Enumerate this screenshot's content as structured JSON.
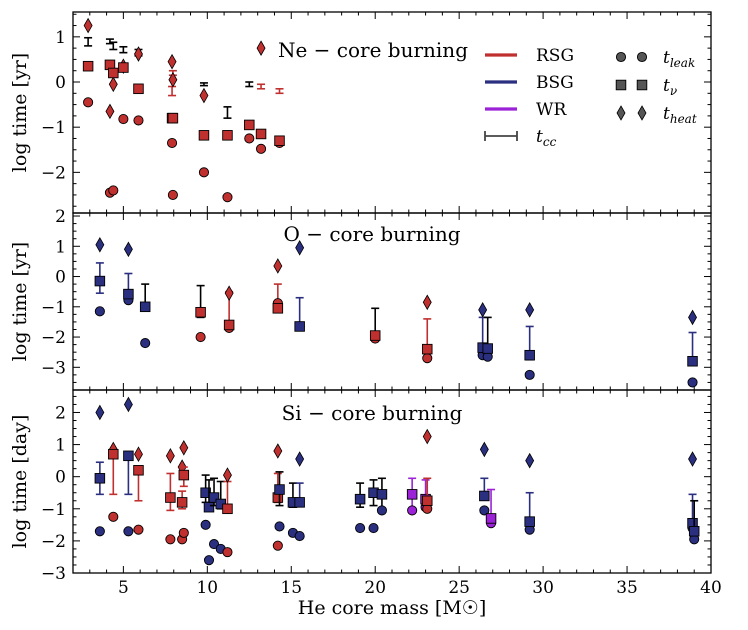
{
  "chart_data": {
    "type": "scatter",
    "xlabel": "He core mass [M☉]",
    "xlim": [
      2,
      40
    ],
    "xticks": [
      5,
      10,
      15,
      20,
      25,
      30,
      35,
      40
    ],
    "colors": {
      "RSG": "#c0302f",
      "BSG": "#2a2f80",
      "WR": "#9b22d6",
      "tcc": "#000000",
      "axis": "#000000"
    },
    "legend": {
      "placement": "top-right",
      "lines": [
        {
          "key": "RSG",
          "label": "RSG"
        },
        {
          "key": "BSG",
          "label": "BSG"
        },
        {
          "key": "WR",
          "label": "WR"
        },
        {
          "key": "tcc",
          "label": "t_cc"
        }
      ],
      "markers": [
        {
          "marker": "circle",
          "label": "t_leak"
        },
        {
          "marker": "square",
          "label": "t_ν"
        },
        {
          "marker": "diamond",
          "label": "t_heat"
        }
      ]
    },
    "panels": [
      {
        "title": "Ne − core burning",
        "ylabel": "log time [yr]",
        "ylim": [
          -2.9,
          1.55
        ],
        "yticks": [
          -2,
          -1,
          0,
          1
        ],
        "minor_step": 0.25,
        "points": [
          {
            "x": 2.9,
            "c": "RSG",
            "leak": -0.45,
            "nu": 0.35,
            "heat": 1.25,
            "cc": 0.9,
            "lo": 0.8,
            "hi": 0.98,
            "tcc_color": "black"
          },
          {
            "x": 4.2,
            "c": "RSG",
            "leak": -2.45,
            "nu": 0.38,
            "heat": -0.65,
            "cc": 0.9,
            "lo": 0.85,
            "hi": 0.95,
            "tcc_color": "black"
          },
          {
            "x": 4.4,
            "c": "RSG",
            "leak": -2.4,
            "nu": 0.2,
            "heat": -0.05,
            "cc": 0.8,
            "lo": 0.72,
            "hi": 0.88,
            "tcc_color": "black"
          },
          {
            "x": 5.0,
            "c": "RSG",
            "leak": -0.82,
            "nu": 0.32,
            "heat": 0.35,
            "cc": 0.72,
            "lo": 0.65,
            "hi": 0.78,
            "tcc_color": "black"
          },
          {
            "x": 5.9,
            "c": "RSG",
            "leak": -0.85,
            "nu": -0.15,
            "heat": 0.62,
            "cc": 0.65,
            "lo": 0.58,
            "hi": 0.72,
            "tcc_color": "black"
          },
          {
            "x": 7.9,
            "c": "RSG",
            "leak": -1.35,
            "nu": -0.8,
            "heat": 0.45,
            "cc": -0.25,
            "lo": -0.3,
            "hi": -0.1,
            "tcc_color": "red"
          },
          {
            "x": 7.95,
            "c": "RSG",
            "leak": -2.5,
            "nu": -0.8,
            "heat": 0.05,
            "cc": 0.2,
            "lo": 0.15,
            "hi": 0.25,
            "tcc_color": "red"
          },
          {
            "x": 9.8,
            "c": "RSG",
            "leak": -2.0,
            "nu": -1.18,
            "heat": -0.3,
            "cc": -0.05,
            "lo": -0.08,
            "hi": -0.02,
            "tcc_color": "black"
          },
          {
            "x": 11.2,
            "c": "RSG",
            "leak": -2.55,
            "nu": -1.18,
            "heat": null,
            "cc": -0.68,
            "lo": -0.8,
            "hi": -0.55,
            "tcc_color": "black"
          },
          {
            "x": 12.5,
            "c": "RSG",
            "leak": -1.25,
            "nu": -0.95,
            "heat": null,
            "cc": -0.05,
            "lo": -0.1,
            "hi": 0.0,
            "tcc_color": "black"
          },
          {
            "x": 13.2,
            "c": "RSG",
            "leak": -1.48,
            "nu": -1.15,
            "heat": 0.75,
            "cc": -0.1,
            "lo": -0.15,
            "hi": -0.05,
            "tcc_color": "red"
          },
          {
            "x": 14.3,
            "c": "RSG",
            "leak": -1.35,
            "nu": -1.3,
            "heat": null,
            "cc": -0.2,
            "lo": -0.25,
            "hi": -0.15,
            "tcc_color": "red"
          }
        ]
      },
      {
        "title": "O − core burning",
        "ylabel": "log time [yr]",
        "ylim": [
          -3.75,
          2.1
        ],
        "yticks": [
          -3,
          -2,
          -1,
          0,
          1,
          2
        ],
        "minor_step": 0.25,
        "points": [
          {
            "x": 3.6,
            "c": "BSG",
            "leak": -1.15,
            "nu": -0.15,
            "heat": 1.05,
            "cc": -0.15,
            "lo": -0.55,
            "hi": 0.45,
            "tcc_color": "same"
          },
          {
            "x": 5.3,
            "c": "BSG",
            "leak": -0.78,
            "nu": -0.58,
            "heat": 0.9,
            "cc": -0.6,
            "lo": -0.8,
            "hi": 0.1,
            "tcc_color": "same"
          },
          {
            "x": 6.3,
            "c": "BSG",
            "leak": -2.2,
            "nu": -1.0,
            "heat": null,
            "cc": -1.0,
            "lo": -1.1,
            "hi": -0.25,
            "tcc_color": "black"
          },
          {
            "x": 9.6,
            "c": "RSG",
            "leak": -2.0,
            "nu": -1.18,
            "heat": null,
            "cc": -1.15,
            "lo": -1.35,
            "hi": -0.3,
            "tcc_color": "black"
          },
          {
            "x": 11.3,
            "c": "RSG",
            "leak": -1.7,
            "nu": -1.6,
            "heat": -0.55,
            "cc": -1.6,
            "lo": -1.7,
            "hi": -0.5,
            "tcc_color": "red"
          },
          {
            "x": 14.2,
            "c": "RSG",
            "leak": -0.88,
            "nu": -1.05,
            "heat": 0.35,
            "cc": -1.05,
            "lo": -1.1,
            "hi": -0.25,
            "tcc_color": "red"
          },
          {
            "x": 15.5,
            "c": "BSG",
            "leak": -1.65,
            "nu": -1.65,
            "heat": 0.95,
            "cc": -1.65,
            "lo": -1.75,
            "hi": -0.7,
            "tcc_color": "same"
          },
          {
            "x": 20.0,
            "c": "RSG",
            "leak": -2.05,
            "nu": -1.95,
            "heat": null,
            "cc": -1.95,
            "lo": -2.05,
            "hi": -1.05,
            "tcc_color": "black"
          },
          {
            "x": 23.1,
            "c": "RSG",
            "leak": -2.7,
            "nu": -2.4,
            "heat": -0.85,
            "cc": -2.4,
            "lo": -2.5,
            "hi": -1.4,
            "tcc_color": "red"
          },
          {
            "x": 26.4,
            "c": "BSG",
            "leak": -2.6,
            "nu": -2.35,
            "heat": -1.1,
            "cc": -2.35,
            "lo": -2.55,
            "hi": -1.35,
            "tcc_color": "same"
          },
          {
            "x": 26.7,
            "c": "BSG",
            "leak": -2.65,
            "nu": -2.38,
            "heat": null,
            "cc": -2.38,
            "lo": -2.6,
            "hi": -1.35,
            "tcc_color": "black"
          },
          {
            "x": 29.2,
            "c": "BSG",
            "leak": -3.25,
            "nu": -2.6,
            "heat": -1.1,
            "cc": -2.6,
            "lo": -2.75,
            "hi": -1.65,
            "tcc_color": "same"
          },
          {
            "x": 38.9,
            "c": "BSG",
            "leak": -3.5,
            "nu": -2.8,
            "heat": -1.35,
            "cc": -2.8,
            "lo": -2.9,
            "hi": -1.85,
            "tcc_color": "same"
          }
        ]
      },
      {
        "title": "Si − core burning",
        "ylabel": "log time [day]",
        "ylim": [
          -3.0,
          2.7
        ],
        "yticks": [
          -3,
          -2,
          -1,
          0,
          1,
          2
        ],
        "minor_step": 0.25,
        "points": [
          {
            "x": 3.6,
            "c": "BSG",
            "leak": -1.7,
            "nu": -0.05,
            "heat": 2.0,
            "cc": -0.05,
            "lo": -0.55,
            "hi": 0.45,
            "tcc_color": "same"
          },
          {
            "x": 4.4,
            "c": "RSG",
            "leak": -1.25,
            "nu": 0.7,
            "heat": 0.85,
            "cc": 0.7,
            "lo": -0.55,
            "hi": 0.8,
            "tcc_color": "same"
          },
          {
            "x": 5.3,
            "c": "BSG",
            "leak": -1.7,
            "nu": 0.65,
            "heat": 2.25,
            "cc": 0.65,
            "lo": -0.55,
            "hi": 0.7,
            "tcc_color": "same"
          },
          {
            "x": 5.9,
            "c": "RSG",
            "leak": -1.65,
            "nu": 0.2,
            "heat": 0.7,
            "cc": 0.2,
            "lo": -0.75,
            "hi": 0.3,
            "tcc_color": "same"
          },
          {
            "x": 7.8,
            "c": "RSG",
            "leak": -1.95,
            "nu": -0.65,
            "heat": 0.65,
            "cc": -0.65,
            "lo": -1.05,
            "hi": 0.1,
            "tcc_color": "same"
          },
          {
            "x": 8.5,
            "c": "RSG",
            "leak": -1.95,
            "nu": -0.8,
            "heat": 0.3,
            "cc": -0.8,
            "lo": -1.0,
            "hi": -0.45,
            "tcc_color": "same"
          },
          {
            "x": 8.6,
            "c": "RSG",
            "leak": -1.75,
            "nu": 0.05,
            "heat": 0.9,
            "cc": 0.05,
            "lo": -0.3,
            "hi": 0.3,
            "tcc_color": "same"
          },
          {
            "x": 9.9,
            "c": "BSG",
            "leak": -1.5,
            "nu": -0.5,
            "heat": null,
            "cc": -0.5,
            "lo": -0.8,
            "hi": 0.05,
            "tcc_color": "black"
          },
          {
            "x": 10.1,
            "c": "BSG",
            "leak": -2.6,
            "nu": -0.95,
            "heat": null,
            "cc": -0.95,
            "lo": -1.0,
            "hi": -0.1,
            "tcc_color": "black"
          },
          {
            "x": 10.4,
            "c": "BSG",
            "leak": -2.1,
            "nu": -0.65,
            "heat": null,
            "cc": -0.65,
            "lo": -0.9,
            "hi": -0.05,
            "tcc_color": "black"
          },
          {
            "x": 10.8,
            "c": "BSG",
            "leak": -2.25,
            "nu": -0.85,
            "heat": null,
            "cc": -0.85,
            "lo": -1.0,
            "hi": -0.15,
            "tcc_color": "black"
          },
          {
            "x": 11.2,
            "c": "RSG",
            "leak": -2.35,
            "nu": -1.0,
            "heat": 0.05,
            "cc": -1.0,
            "lo": -1.0,
            "hi": -0.15,
            "tcc_color": "same"
          },
          {
            "x": 14.2,
            "c": "RSG",
            "leak": -2.15,
            "nu": -0.65,
            "heat": 0.8,
            "cc": -0.65,
            "lo": -0.8,
            "hi": 0.1,
            "tcc_color": "same"
          },
          {
            "x": 14.3,
            "c": "BSG",
            "leak": -1.55,
            "nu": -0.4,
            "heat": null,
            "cc": -0.4,
            "lo": -0.9,
            "hi": 0.15,
            "tcc_color": "black"
          },
          {
            "x": 15.1,
            "c": "BSG",
            "leak": -1.75,
            "nu": -0.8,
            "heat": null,
            "cc": -0.8,
            "lo": -0.95,
            "hi": -0.2,
            "tcc_color": "black"
          },
          {
            "x": 15.5,
            "c": "BSG",
            "leak": -1.85,
            "nu": -0.8,
            "heat": 0.55,
            "cc": -0.8,
            "lo": -0.9,
            "hi": -0.2,
            "tcc_color": "same"
          },
          {
            "x": 19.1,
            "c": "BSG",
            "leak": -1.6,
            "nu": -0.7,
            "heat": null,
            "cc": -0.7,
            "lo": -0.95,
            "hi": -0.2,
            "tcc_color": "black"
          },
          {
            "x": 19.9,
            "c": "BSG",
            "leak": -1.6,
            "nu": -0.5,
            "heat": null,
            "cc": -0.5,
            "lo": -0.9,
            "hi": -0.1,
            "tcc_color": "black"
          },
          {
            "x": 20.4,
            "c": "BSG",
            "leak": -1.05,
            "nu": -0.55,
            "heat": null,
            "cc": -0.55,
            "lo": -1.0,
            "hi": -0.05,
            "tcc_color": "black"
          },
          {
            "x": 22.2,
            "c": "WR",
            "leak": -1.05,
            "nu": -0.55,
            "heat": null,
            "cc": -0.55,
            "lo": -1.05,
            "hi": -0.05,
            "tcc_color": "same"
          },
          {
            "x": 23.0,
            "c": "WR",
            "leak": -0.95,
            "nu": -0.7,
            "heat": null,
            "cc": -0.7,
            "lo": -1.0,
            "hi": -0.1,
            "tcc_color": "same"
          },
          {
            "x": 23.1,
            "c": "RSG",
            "leak": -1.0,
            "nu": -0.75,
            "heat": 1.25,
            "cc": -0.75,
            "lo": -0.9,
            "hi": -0.05,
            "tcc_color": "same"
          },
          {
            "x": 26.5,
            "c": "BSG",
            "leak": -1.05,
            "nu": -0.6,
            "heat": 0.85,
            "cc": -0.6,
            "lo": -0.7,
            "hi": -0.05,
            "tcc_color": "same"
          },
          {
            "x": 26.9,
            "c": "WR",
            "leak": -1.45,
            "nu": -1.3,
            "heat": null,
            "cc": -1.3,
            "lo": -1.4,
            "hi": -0.4,
            "tcc_color": "same"
          },
          {
            "x": 29.2,
            "c": "BSG",
            "leak": -1.65,
            "nu": -1.4,
            "heat": 0.5,
            "cc": -1.4,
            "lo": -1.5,
            "hi": -0.5,
            "tcc_color": "same"
          },
          {
            "x": 38.9,
            "c": "BSG",
            "leak": -1.6,
            "nu": -1.45,
            "heat": 0.55,
            "cc": -1.45,
            "lo": -1.6,
            "hi": -0.55,
            "tcc_color": "same"
          },
          {
            "x": 39.0,
            "c": "BSG",
            "leak": -1.95,
            "nu": -1.7,
            "heat": null,
            "cc": -1.7,
            "lo": -1.75,
            "hi": -0.75,
            "tcc_color": "black"
          }
        ]
      }
    ]
  }
}
